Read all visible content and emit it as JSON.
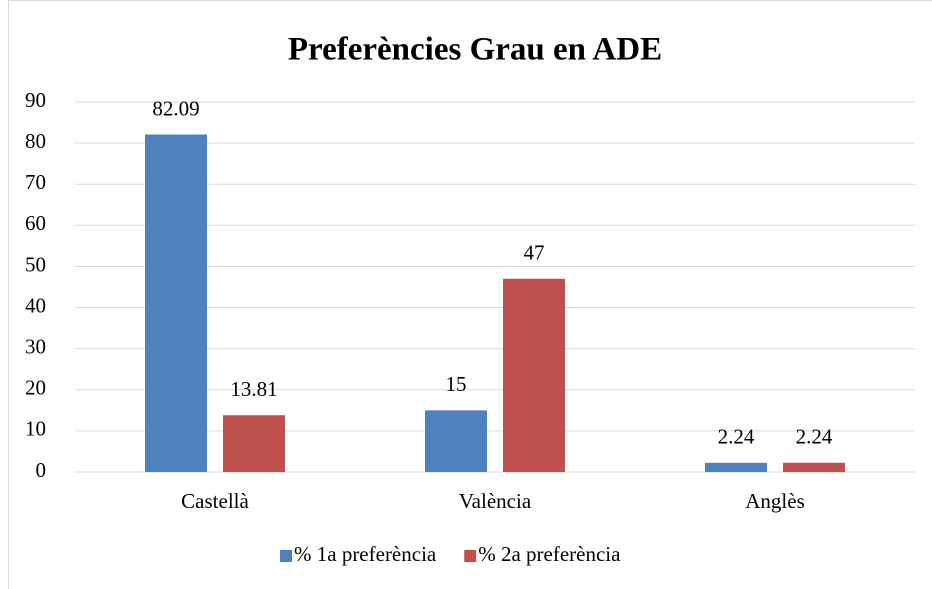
{
  "chart_data": {
    "type": "bar",
    "title": "Preferències Grau en ADE",
    "categories": [
      "Castellà",
      "València",
      "Anglès"
    ],
    "series": [
      {
        "name": "% 1a preferència",
        "color": "#4f81bd",
        "values": [
          82.09,
          15,
          2.24
        ]
      },
      {
        "name": "% 2a preferència",
        "color": "#c0504d",
        "values": [
          13.81,
          47,
          2.24
        ]
      }
    ],
    "ylim": [
      0,
      90
    ],
    "yticks": [
      0,
      10,
      20,
      30,
      40,
      50,
      60,
      70,
      80,
      90
    ],
    "grid": true,
    "legend": "bottom"
  }
}
